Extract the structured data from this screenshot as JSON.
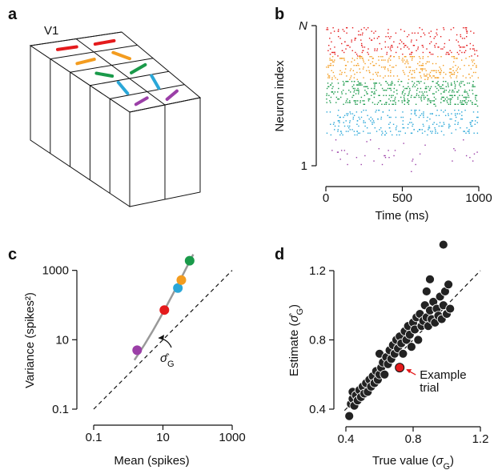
{
  "panel_a": {
    "panel_label": "a",
    "area_label": "V1"
  },
  "chart_data": [
    {
      "type": "raster",
      "panel_label": "b",
      "xlim": [
        0,
        1000
      ],
      "xticks": [
        0,
        500,
        1000
      ],
      "ytick_labels": [
        "N",
        "1"
      ],
      "x_label": "Time (ms)",
      "y_label": "Neuron index",
      "band_colors": [
        "#e41a1c",
        "#f39c1f",
        "#1a9a4a",
        "#2aa7d8",
        "#9b3fa7"
      ]
    },
    {
      "type": "scatter",
      "panel_label": "c",
      "log_x": true,
      "log_y": true,
      "xlim": [
        0.1,
        1000
      ],
      "ylim": [
        0.1,
        3000
      ],
      "xticks": [
        0.1,
        10,
        1000
      ],
      "yticks": [
        0.1,
        10,
        1000
      ],
      "x_label": "Mean (spikes)",
      "y_label": "Variance (spikes²)",
      "x": [
        1.8,
        11,
        27,
        34,
        59
      ],
      "values": [
        5,
        72,
        309,
        525,
        1900
      ],
      "point_colors": [
        "#9b3fa7",
        "#e41a1c",
        "#2aa7d8",
        "#f39c1f",
        "#1a9a4a"
      ],
      "curve": {
        "color": "#999999",
        "x": [
          1.5,
          2,
          3,
          5,
          8,
          12,
          20,
          30,
          50,
          75
        ],
        "values": [
          2.6,
          4,
          7.5,
          17.5,
          40,
          84,
          220,
          480,
          1300,
          2887
        ]
      },
      "identity_line": true,
      "annotation": [
        "σ̂",
        "G"
      ]
    },
    {
      "type": "scatter",
      "panel_label": "d",
      "xlim": [
        0.4,
        1.2
      ],
      "ylim": [
        0.4,
        1.2
      ],
      "xticks": [
        0.4,
        0.8,
        1.2
      ],
      "yticks": [
        0.4,
        0.8,
        1.2
      ],
      "x_label": [
        "True value (",
        "σ",
        "G",
        ")"
      ],
      "y_label": [
        "Estimate (",
        "σ̂",
        "G",
        ")"
      ],
      "color": "#222222",
      "x": [
        0.42,
        0.43,
        0.44,
        0.44,
        0.45,
        0.46,
        0.47,
        0.48,
        0.49,
        0.5,
        0.51,
        0.52,
        0.53,
        0.54,
        0.55,
        0.56,
        0.57,
        0.58,
        0.59,
        0.6,
        0.6,
        0.61,
        0.62,
        0.63,
        0.64,
        0.65,
        0.66,
        0.67,
        0.68,
        0.69,
        0.7,
        0.71,
        0.72,
        0.73,
        0.74,
        0.75,
        0.76,
        0.77,
        0.78,
        0.79,
        0.8,
        0.81,
        0.82,
        0.83,
        0.84,
        0.85,
        0.86,
        0.87,
        0.88,
        0.88,
        0.89,
        0.9,
        0.91,
        0.92,
        0.93,
        0.94,
        0.95,
        0.96,
        0.97,
        0.98,
        0.99,
        1.0,
        1.01,
        1.02,
        0.98,
        0.9
      ],
      "values": [
        0.36,
        0.43,
        0.46,
        0.5,
        0.42,
        0.48,
        0.45,
        0.51,
        0.47,
        0.53,
        0.49,
        0.55,
        0.5,
        0.57,
        0.53,
        0.59,
        0.55,
        0.62,
        0.57,
        0.6,
        0.72,
        0.64,
        0.67,
        0.6,
        0.7,
        0.66,
        0.74,
        0.69,
        0.77,
        0.72,
        0.8,
        0.75,
        0.82,
        0.78,
        0.72,
        0.85,
        0.8,
        0.88,
        0.83,
        0.76,
        0.9,
        0.86,
        0.93,
        0.8,
        0.95,
        0.88,
        0.91,
        1.0,
        0.93,
        1.08,
        0.88,
        0.97,
        0.92,
        1.02,
        0.9,
        0.98,
        0.94,
        1.05,
        0.92,
        1.0,
        1.08,
        0.95,
        1.12,
        0.98,
        1.35,
        1.15
      ],
      "identity_line": true,
      "example": {
        "x": 0.72,
        "value": 0.64,
        "color": "#e41a1c",
        "label": [
          "Example",
          "trial"
        ]
      }
    }
  ]
}
